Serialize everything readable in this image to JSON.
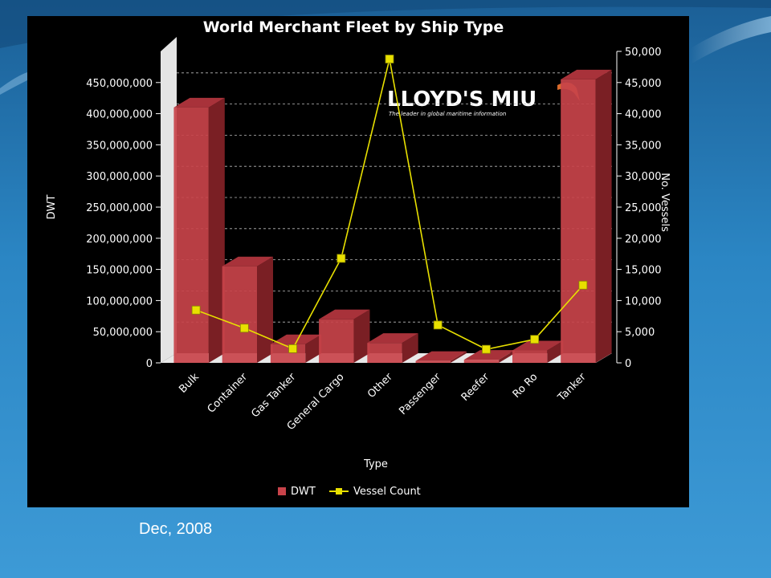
{
  "caption": "Dec, 2008",
  "logo": {
    "name": "LLOYD'S MIU",
    "tagline": "The leader in global maritime information"
  },
  "colors": {
    "bar": "#c8434a",
    "line": "#e8e000",
    "background": "#000000"
  },
  "chart_data": {
    "type": "bar",
    "title": "World Merchant Fleet by Ship Type",
    "xlabel": "Type",
    "ylabel": "DWT",
    "y2label": "No. Vessels",
    "categories": [
      "Bulk",
      "Container",
      "Gas Tanker",
      "General Cargo",
      "Other",
      "Passenger",
      "Reefer",
      "Ro Ro",
      "Tanker"
    ],
    "ylim": [
      0,
      500000000
    ],
    "y_ticks": [
      "0",
      "50,000,000",
      "100,000,000",
      "150,000,000",
      "200,000,000",
      "250,000,000",
      "300,000,000",
      "350,000,000",
      "400,000,000",
      "450,000,000"
    ],
    "y2lim": [
      0,
      50000
    ],
    "y2_ticks": [
      "0",
      "5,000",
      "10,000",
      "15,000",
      "20,000",
      "25,000",
      "30,000",
      "35,000",
      "40,000",
      "45,000",
      "50,000"
    ],
    "grid": true,
    "legend": "bottom",
    "series": [
      {
        "name": "DWT",
        "type": "bar",
        "axis": "left",
        "values": [
          410000000,
          155000000,
          30000000,
          70000000,
          32000000,
          3000000,
          5000000,
          20000000,
          455000000
        ]
      },
      {
        "name": "Vessel Count",
        "type": "line",
        "axis": "right",
        "values": [
          7700,
          4800,
          1500,
          16000,
          48000,
          5300,
          1400,
          3000,
          11700
        ]
      }
    ]
  }
}
